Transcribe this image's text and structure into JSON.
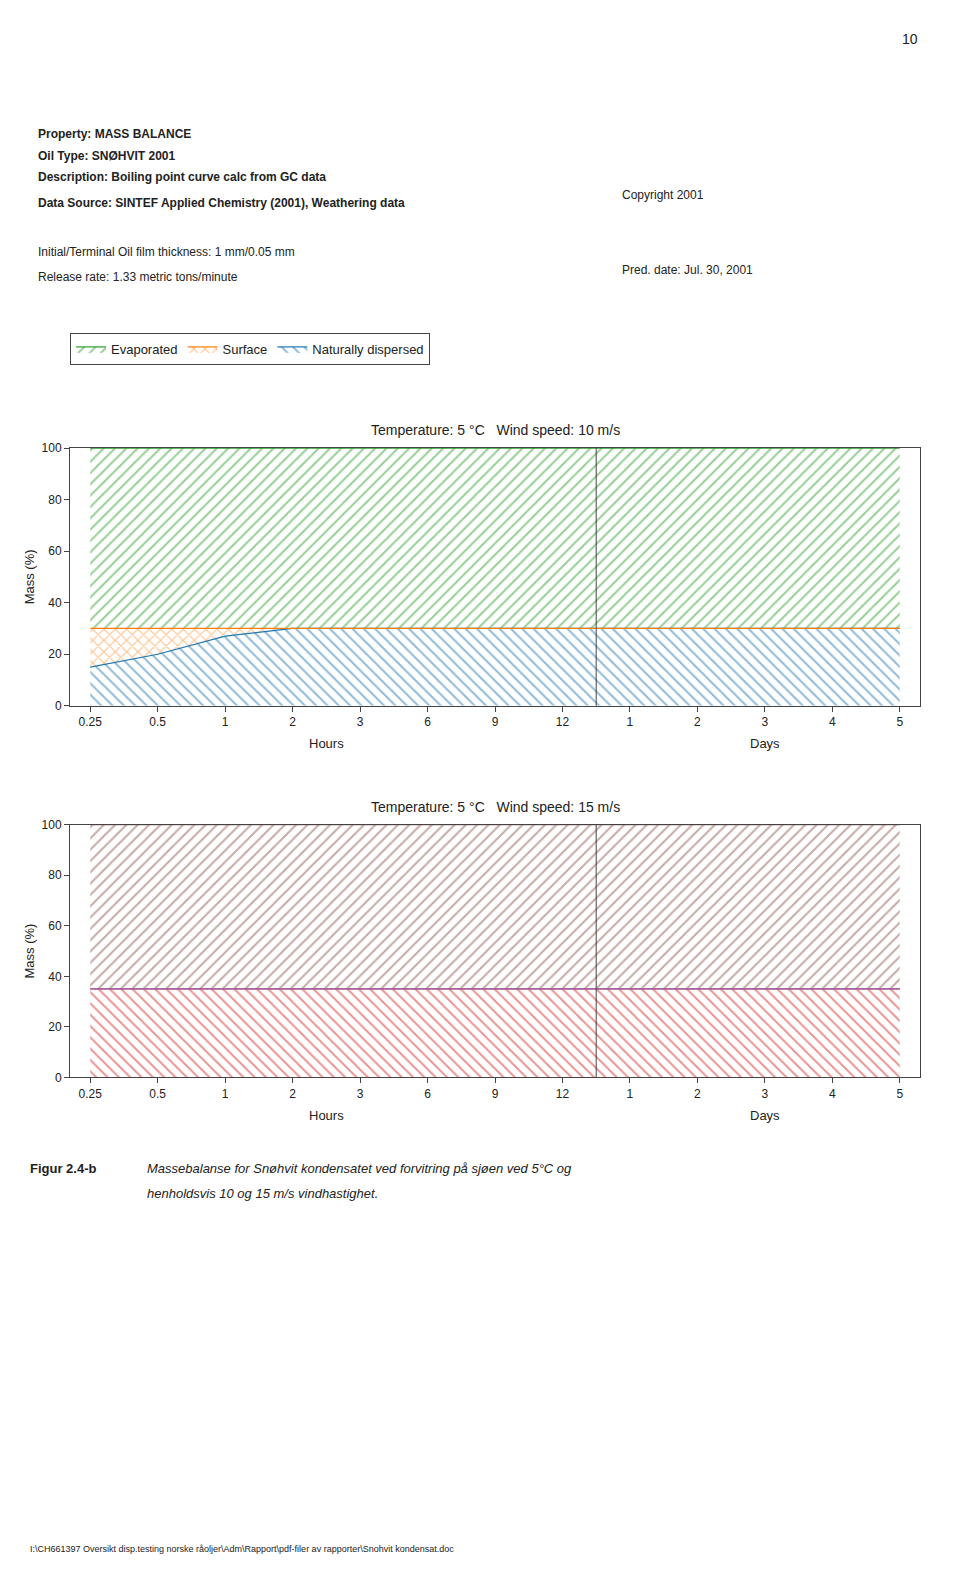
{
  "annotations": [
    "10",
    "Property: MASS BALANCE",
    "Oil Type: SNØHVIT 2001",
    "Description: Boiling point curve calc from GC data",
    "Data Source: SINTEF Applied Chemistry (2001), Weathering data",
    "Copyright 2001",
    "Initial/Terminal Oil film thickness: 1 mm/0.05 mm",
    "Release rate: 1.33 metric tons/minute",
    "Pred. date: Jul. 30, 2001",
    "Figur 2.4-b",
    "Massebalanse for Snøhvit kondensatet ved forvitring på sjøen ved 5°C og",
    "henholdsvis 10 og 15 m/s vindhastighet.",
    "I:\\CH661397 Oversikt disp.testing norske råoljer\\Adm\\Rapport\\pdf-filer av rapporter\\Snohvit kondensat.doc"
  ],
  "chart_data": [
    {
      "type": "area",
      "title": "Temperature: 5 °C   Wind speed: 10 m/s",
      "ylabel": "Mass (%)",
      "annotations": [
        "Hours",
        "Days"
      ],
      "categories": [
        "0.25",
        "0.5",
        "1",
        "2",
        "3",
        "6",
        "9",
        "12",
        "1",
        "2",
        "3",
        "4",
        "5"
      ],
      "series": [
        {
          "name": "Evaporated",
          "values": [
            70,
            70,
            70,
            70,
            70,
            70,
            70,
            70,
            70,
            70,
            70,
            70,
            70
          ]
        },
        {
          "name": "Surface",
          "values": [
            15,
            10,
            3,
            0,
            0,
            0,
            0,
            0,
            0,
            0,
            0,
            0,
            0
          ]
        },
        {
          "name": "Naturally dispersed",
          "values": [
            15,
            20,
            27,
            30,
            30,
            30,
            30,
            30,
            30,
            30,
            30,
            30,
            30
          ]
        }
      ],
      "stacked": true,
      "ylim": [
        0,
        100
      ],
      "yticks": [
        0,
        20,
        40,
        60,
        80,
        100
      ],
      "grid": false,
      "legend": "top"
    },
    {
      "type": "area",
      "title": "Temperature: 5 °C   Wind speed: 15 m/s",
      "ylabel": "Mass (%)",
      "annotations": [
        "Hours",
        "Days"
      ],
      "categories": [
        "0.25",
        "0.5",
        "1",
        "2",
        "3",
        "6",
        "9",
        "12",
        "1",
        "2",
        "3",
        "4",
        "5"
      ],
      "series": [
        {
          "name": "Evaporated",
          "values": [
            65,
            65,
            65,
            65,
            65,
            65,
            65,
            65,
            65,
            65,
            65,
            65,
            65
          ]
        },
        {
          "name": "Surface",
          "values": [
            0,
            0,
            0,
            0,
            0,
            0,
            0,
            0,
            0,
            0,
            0,
            0,
            0
          ]
        },
        {
          "name": "Naturally dispersed",
          "values": [
            35,
            35,
            35,
            35,
            35,
            35,
            35,
            35,
            35,
            35,
            35,
            35,
            35
          ]
        }
      ],
      "stacked": true,
      "ylim": [
        0,
        100
      ],
      "yticks": [
        0,
        20,
        40,
        60,
        80,
        100
      ],
      "grid": false
    }
  ]
}
